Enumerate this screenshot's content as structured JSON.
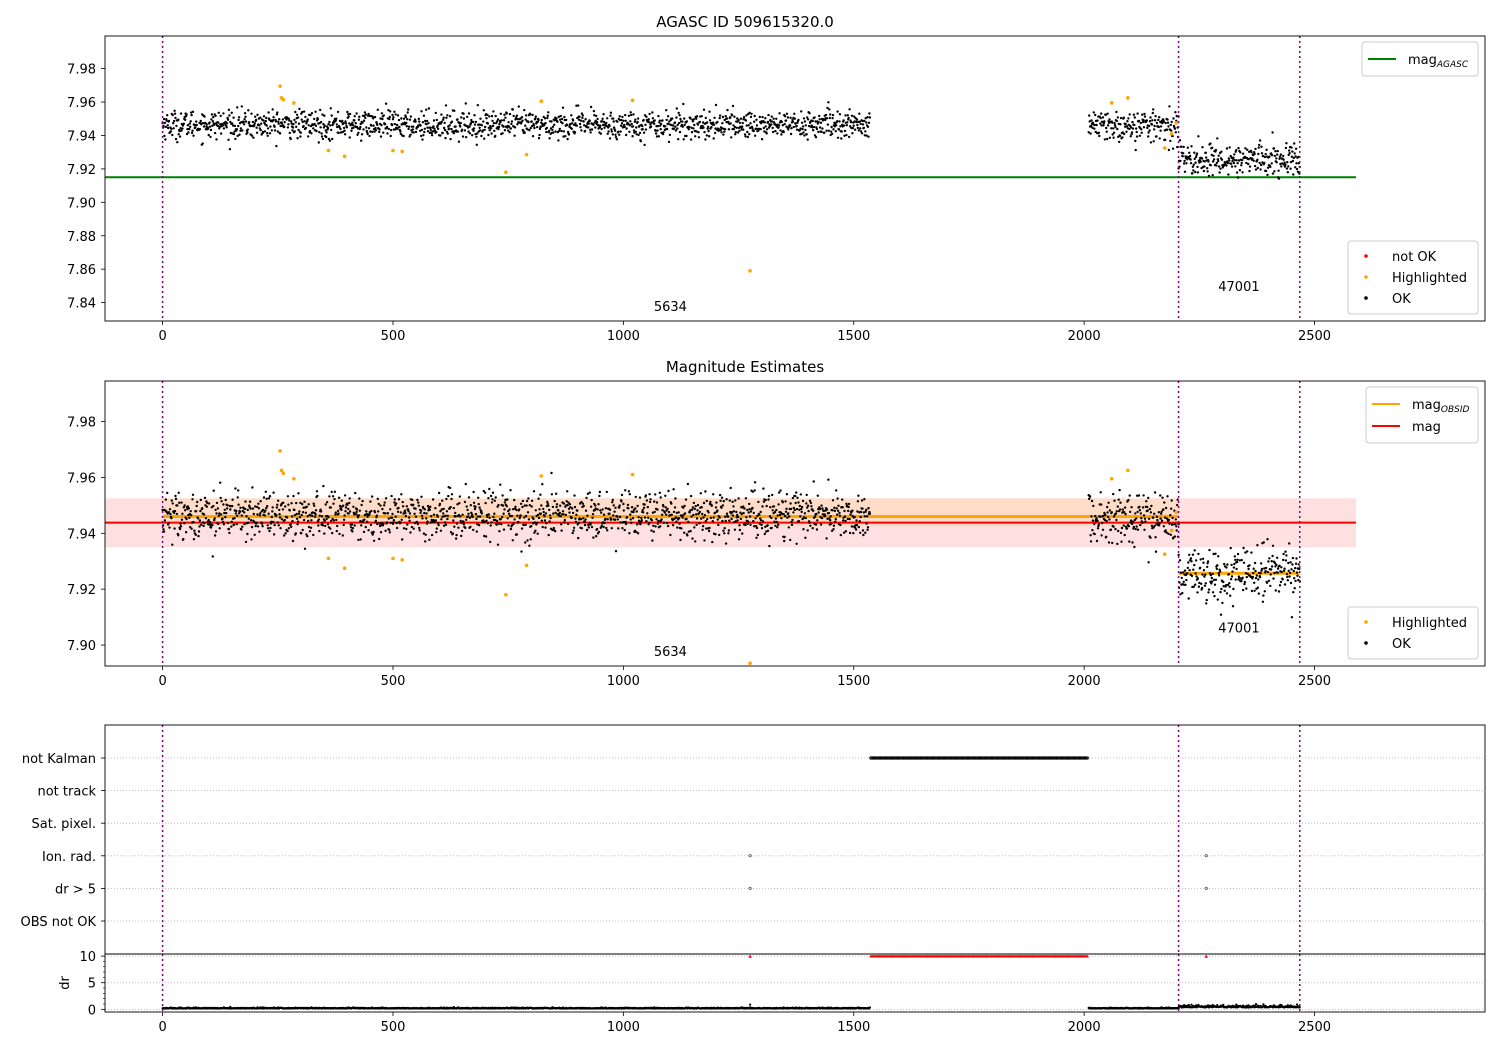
{
  "colors": {
    "ok": "#000000",
    "highlighted": "#ffa500",
    "not_ok": "#ff0000",
    "agasc_line": "#008000",
    "obsid_line": "#ffa500",
    "mag_line": "#ff0000",
    "band_red": "#ffcccc",
    "band_orange": "#ffd8b8",
    "obs_boundary": "#800080",
    "grid": "#b0b0b0"
  },
  "chart_data": [
    {
      "type": "scatter",
      "title": "AGASC ID 509615320.0",
      "xlim": [
        -125,
        2870
      ],
      "ylim": [
        7.829,
        7.9995
      ],
      "xticks": [
        0,
        500,
        1000,
        1500,
        2000,
        2500
      ],
      "yticks": [
        7.84,
        7.86,
        7.88,
        7.9,
        7.92,
        7.94,
        7.96,
        7.98
      ],
      "obs_boundaries": [
        0,
        2205,
        2468
      ],
      "obs_labels": [
        {
          "text": "5634",
          "x": 1102,
          "y": 7.835
        },
        {
          "text": "47001",
          "x": 2336,
          "y": 7.847
        }
      ],
      "segments": [
        {
          "name": "5634",
          "x_start": 0,
          "x_end": 1535,
          "mean": 7.9465,
          "sd": 0.0042
        },
        {
          "name": "",
          "x_start": 2010,
          "x_end": 2205,
          "mean": 7.9455,
          "sd": 0.0045
        },
        {
          "name": "47001",
          "x_start": 2205,
          "x_end": 2468,
          "mean": 7.9255,
          "sd": 0.0048
        }
      ],
      "hlines": [
        {
          "name": "mag_AGASC",
          "y": 7.915,
          "x_start": -125,
          "x_end": 2590,
          "color": "#008000"
        }
      ],
      "highlighted_points": [
        {
          "x": 255,
          "y": 7.9695
        },
        {
          "x": 258,
          "y": 7.9625
        },
        {
          "x": 262,
          "y": 7.9615
        },
        {
          "x": 285,
          "y": 7.9595
        },
        {
          "x": 360,
          "y": 7.931
        },
        {
          "x": 395,
          "y": 7.9275
        },
        {
          "x": 500,
          "y": 7.931
        },
        {
          "x": 520,
          "y": 7.9305
        },
        {
          "x": 745,
          "y": 7.918
        },
        {
          "x": 790,
          "y": 7.9285
        },
        {
          "x": 822,
          "y": 7.9605
        },
        {
          "x": 1020,
          "y": 7.961
        },
        {
          "x": 1275,
          "y": 7.859
        },
        {
          "x": 2060,
          "y": 7.9595
        },
        {
          "x": 2095,
          "y": 7.9625
        },
        {
          "x": 2175,
          "y": 7.9325
        },
        {
          "x": 2190,
          "y": 7.941
        },
        {
          "x": 2200,
          "y": 7.9475
        }
      ],
      "legends": [
        {
          "position": "upper-right",
          "items": [
            {
              "label": "mag",
              "sub": "AGASC",
              "color": "#008000",
              "kind": "line"
            }
          ]
        },
        {
          "position": "lower-right",
          "items": [
            {
              "label": "not OK",
              "color": "#ff0000",
              "kind": "point"
            },
            {
              "label": "Highlighted",
              "color": "#ffa500",
              "kind": "point"
            },
            {
              "label": "OK",
              "color": "#000000",
              "kind": "point"
            }
          ]
        }
      ]
    },
    {
      "type": "scatter",
      "title": "Magnitude Estimates",
      "xlim": [
        -125,
        2870
      ],
      "ylim": [
        7.8925,
        7.9945
      ],
      "xticks": [
        0,
        500,
        1000,
        1500,
        2000,
        2500
      ],
      "yticks": [
        7.9,
        7.92,
        7.94,
        7.96,
        7.98
      ],
      "obs_boundaries": [
        0,
        2205,
        2468
      ],
      "obs_labels": [
        {
          "text": "5634",
          "x": 1102,
          "y": 7.896
        },
        {
          "text": "47001",
          "x": 2336,
          "y": 7.9045
        }
      ],
      "bands": [
        {
          "y1": 7.935,
          "y2": 7.9525,
          "x_start": -125,
          "x_end": 2590,
          "color": "#ffcccc"
        },
        {
          "y1": 7.9425,
          "y2": 7.9525,
          "x_start": 0,
          "x_end": 2205,
          "color": "#ffd8b8"
        }
      ],
      "hlines": [
        {
          "name": "mag_OBSID",
          "y": 7.946,
          "x_start": 0,
          "x_end": 2205,
          "color": "#ffa500",
          "width": 3
        },
        {
          "name": "mag_OBSID",
          "y": 7.9257,
          "x_start": 2205,
          "x_end": 2468,
          "color": "#ffa500",
          "width": 3
        },
        {
          "name": "mag",
          "y": 7.9438,
          "x_start": -125,
          "x_end": 2590,
          "color": "#ff0000",
          "width": 2
        }
      ],
      "highlighted_points": [
        {
          "x": 255,
          "y": 7.9695
        },
        {
          "x": 258,
          "y": 7.9625
        },
        {
          "x": 262,
          "y": 7.9615
        },
        {
          "x": 285,
          "y": 7.9595
        },
        {
          "x": 360,
          "y": 7.931
        },
        {
          "x": 395,
          "y": 7.9275
        },
        {
          "x": 500,
          "y": 7.931
        },
        {
          "x": 520,
          "y": 7.9305
        },
        {
          "x": 745,
          "y": 7.918
        },
        {
          "x": 790,
          "y": 7.9285
        },
        {
          "x": 822,
          "y": 7.9605
        },
        {
          "x": 1020,
          "y": 7.961
        },
        {
          "x": 1275,
          "y": 7.8935
        },
        {
          "x": 2060,
          "y": 7.9595
        },
        {
          "x": 2095,
          "y": 7.9625
        },
        {
          "x": 2175,
          "y": 7.9325
        },
        {
          "x": 2190,
          "y": 7.941
        },
        {
          "x": 2200,
          "y": 7.9475
        }
      ],
      "legends": [
        {
          "position": "upper-right",
          "items": [
            {
              "label": "mag",
              "sub": "OBSID",
              "color": "#ffa500",
              "kind": "line"
            },
            {
              "label": "mag",
              "sub": "",
              "color": "#ff0000",
              "kind": "line"
            }
          ]
        },
        {
          "position": "lower-right",
          "items": [
            {
              "label": "Highlighted",
              "color": "#ffa500",
              "kind": "point"
            },
            {
              "label": "OK",
              "color": "#000000",
              "kind": "point"
            }
          ]
        }
      ]
    },
    {
      "type": "scatter",
      "title": "",
      "xlim": [
        -125,
        2870
      ],
      "categories": [
        "not Kalman",
        "not track",
        "Sat. pixel.",
        "Ion. rad.",
        "dr > 5",
        "OBS not OK"
      ],
      "flags": [
        {
          "category": "not Kalman",
          "ranges": [
            [
              1537,
              2008
            ]
          ],
          "points": []
        },
        {
          "category": "not track",
          "ranges": [],
          "points": []
        },
        {
          "category": "Sat. pixel.",
          "ranges": [],
          "points": []
        },
        {
          "category": "Ion. rad.",
          "ranges": [],
          "points": [
            1275,
            2265
          ]
        },
        {
          "category": "dr > 5",
          "ranges": [],
          "points": [
            1275,
            2265
          ]
        },
        {
          "category": "OBS not OK",
          "ranges": [],
          "points": []
        }
      ],
      "obs_boundaries": [
        0,
        2205,
        2468
      ]
    },
    {
      "type": "scatter",
      "title": "",
      "ylabel": "dr",
      "xlim": [
        -125,
        2870
      ],
      "ylim": [
        -0.5,
        10.4
      ],
      "xticks": [
        0,
        500,
        1000,
        1500,
        2000,
        2500
      ],
      "yticks": [
        0,
        5,
        10
      ],
      "clipped_y": 10,
      "clipped_ranges": [
        [
          1537,
          2008
        ]
      ],
      "clipped_points": [
        1275,
        2265
      ],
      "dr_segments": [
        {
          "x_start": 0,
          "x_end": 1535,
          "mean": 0.15,
          "sd": 0.08
        },
        {
          "x_start": 2010,
          "x_end": 2205,
          "mean": 0.15,
          "sd": 0.08
        },
        {
          "x_start": 2205,
          "x_end": 2468,
          "mean": 0.35,
          "sd": 0.2
        }
      ],
      "obs_boundaries": [
        0,
        2205,
        2468
      ]
    }
  ]
}
